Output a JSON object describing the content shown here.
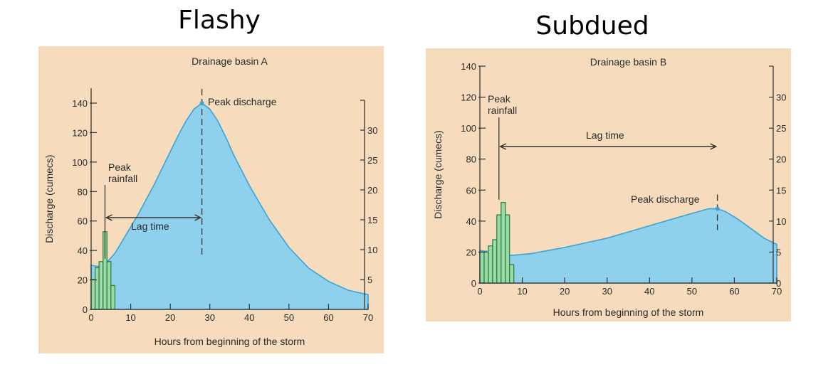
{
  "headings": {
    "left": "Flashy",
    "right": "Subdued"
  },
  "chart_data": [
    {
      "type": "area",
      "title": "Drainage basin A",
      "xlabel": "Hours from beginning of the storm",
      "ylabel": "Discharge (cumecs)",
      "xlim": [
        0,
        70
      ],
      "ylim": [
        0,
        150
      ],
      "x_ticks": [
        0,
        10,
        20,
        30,
        40,
        50,
        60,
        70
      ],
      "y_ticks": [
        0,
        20,
        40,
        60,
        80,
        100,
        120,
        140
      ],
      "right_ticks": [
        5,
        10,
        15,
        20,
        25,
        30
      ],
      "right_max": 35,
      "series": [
        {
          "name": "Discharge",
          "x": [
            0,
            2,
            4,
            6,
            8,
            10,
            12,
            14,
            16,
            18,
            20,
            22,
            24,
            26,
            28,
            30,
            32,
            34,
            36,
            40,
            45,
            50,
            55,
            60,
            65,
            70
          ],
          "values": [
            30,
            29,
            32,
            38,
            47,
            56,
            65,
            75,
            85,
            96,
            107,
            118,
            128,
            136,
            140,
            136,
            128,
            117,
            105,
            84,
            61,
            42,
            28,
            19,
            13,
            10
          ]
        },
        {
          "name": "Rainfall",
          "x": [
            0,
            1,
            2,
            3,
            4,
            5
          ],
          "values": [
            5,
            7,
            8,
            13,
            8,
            4
          ]
        }
      ],
      "annotations": {
        "peak_discharge": "Peak discharge",
        "peak_rainfall": "Peak rainfall",
        "lag_time": "Lag time",
        "peak_rainfall_hour": 3.5,
        "peak_discharge_hour": 28
      }
    },
    {
      "type": "area",
      "title": "Drainage basin B",
      "xlabel": "Hours from beginning of the storm",
      "ylabel": "Discharge (cumecs)",
      "xlim": [
        0,
        70
      ],
      "ylim": [
        0,
        140
      ],
      "x_ticks": [
        0,
        10,
        20,
        30,
        40,
        50,
        60,
        70
      ],
      "y_ticks": [
        0,
        20,
        40,
        60,
        80,
        100,
        120,
        140
      ],
      "right_ticks": [
        0,
        5,
        10,
        15,
        20,
        25,
        30
      ],
      "right_max": 35,
      "series": [
        {
          "name": "Discharge",
          "x": [
            0,
            3,
            5,
            8,
            12,
            16,
            20,
            25,
            30,
            35,
            40,
            45,
            50,
            54,
            56,
            58,
            61,
            64,
            67,
            70
          ],
          "values": [
            21,
            20,
            18,
            18,
            19,
            21,
            23,
            26,
            29,
            33,
            37,
            41,
            45,
            48,
            48,
            46,
            41,
            35,
            29,
            25
          ]
        },
        {
          "name": "Rainfall",
          "x": [
            0,
            1,
            2,
            3,
            4,
            5,
            6,
            7
          ],
          "values": [
            5,
            5,
            6,
            7,
            11,
            13,
            11,
            3
          ]
        }
      ],
      "annotations": {
        "peak_discharge": "Peak discharge",
        "peak_rainfall": "Peak rainfall",
        "lag_time": "Lag time",
        "peak_rainfall_hour": 4.5,
        "peak_discharge_hour": 56
      }
    }
  ]
}
